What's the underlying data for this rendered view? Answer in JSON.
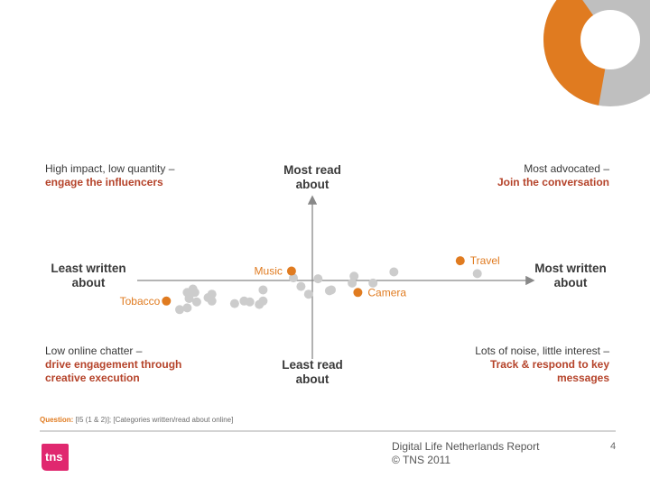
{
  "quadrants": {
    "top_left": {
      "plain": "High impact, low quantity –",
      "emph": "engage the influencers"
    },
    "top_right": {
      "plain": "Most advocated –",
      "emph": "Join the conversation"
    },
    "bottom_left": {
      "plain": "Low online chatter –",
      "emph1": "drive engagement through",
      "emph2": "creative execution"
    },
    "bottom_right": {
      "plain": "Lots of noise, little interest –",
      "emph1": "Track & respond to key",
      "emph2": "messages"
    }
  },
  "axes": {
    "top": [
      "Most read",
      "about"
    ],
    "bottom": [
      "Least read",
      "about"
    ],
    "left": [
      "Least written",
      "about"
    ],
    "right": [
      "Most written",
      "about"
    ]
  },
  "question": {
    "label": "Question:",
    "text": " [I5 (1 & 2)]; [Categories written/read about online]"
  },
  "footer": {
    "line1": "Digital Life  Netherlands  Report",
    "line2": "© TNS 2011",
    "page": "4",
    "logo_text": "tns"
  },
  "colors": {
    "highlight": "#e07b20",
    "accent_text": "#b5432a",
    "grey_point": "#cccccc",
    "axis": "#888888"
  },
  "chart_data": {
    "type": "scatter",
    "xlim": [
      -10,
      10
    ],
    "ylim": [
      -10,
      10
    ],
    "grid": false,
    "highlighted": [
      {
        "name": "Travel",
        "x": 7.8,
        "y": 2.3
      },
      {
        "name": "Music",
        "x": -1.1,
        "y": 1.1
      },
      {
        "name": "Camera",
        "x": 2.4,
        "y": -1.4
      },
      {
        "name": "Tobacco",
        "x": -7.7,
        "y": -2.4
      }
    ],
    "points": [
      {
        "x": 4.3,
        "y": 1.0
      },
      {
        "x": 8.7,
        "y": 0.8
      },
      {
        "x": 2.2,
        "y": 0.5
      },
      {
        "x": -1.0,
        "y": 0.3
      },
      {
        "x": 0.3,
        "y": 0.2
      },
      {
        "x": 2.1,
        "y": -0.3
      },
      {
        "x": 3.2,
        "y": -0.3
      },
      {
        "x": -0.6,
        "y": -0.7
      },
      {
        "x": 0.9,
        "y": -1.2
      },
      {
        "x": 1.0,
        "y": -1.1
      },
      {
        "x": -2.6,
        "y": -1.1
      },
      {
        "x": -0.2,
        "y": -1.6
      },
      {
        "x": -6.3,
        "y": -1.0
      },
      {
        "x": -6.6,
        "y": -1.4
      },
      {
        "x": -6.2,
        "y": -1.4
      },
      {
        "x": -5.3,
        "y": -1.6
      },
      {
        "x": -5.5,
        "y": -2.0
      },
      {
        "x": -5.3,
        "y": -2.4
      },
      {
        "x": -6.5,
        "y": -2.1
      },
      {
        "x": -6.1,
        "y": -2.5
      },
      {
        "x": -3.6,
        "y": -2.4
      },
      {
        "x": -3.3,
        "y": -2.5
      },
      {
        "x": -2.6,
        "y": -2.4
      },
      {
        "x": -2.8,
        "y": -2.8
      },
      {
        "x": -4.1,
        "y": -2.7
      },
      {
        "x": -6.6,
        "y": -3.2
      },
      {
        "x": -7.0,
        "y": -3.4
      }
    ]
  }
}
